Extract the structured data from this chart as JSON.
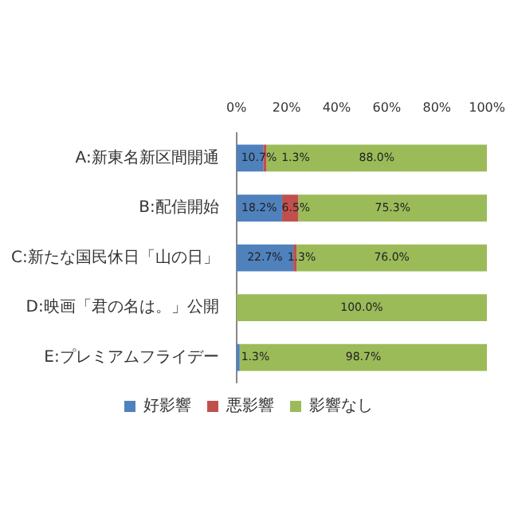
{
  "chart_data": {
    "type": "bar",
    "orientation": "horizontal",
    "stacked": true,
    "legend": "bottom",
    "grid": false,
    "categories": [
      "A:新東名新区間開通",
      "B:配信開始",
      "C:新たな国民休日「山の日」",
      "D:映画「君の名は。」公開",
      "E:プレミアムフライデー"
    ],
    "xlim": [
      0,
      100
    ],
    "xticks": [
      {
        "value": 0,
        "label": "0%"
      },
      {
        "value": 20,
        "label": "20%"
      },
      {
        "value": 40,
        "label": "40%"
      },
      {
        "value": 60,
        "label": "60%"
      },
      {
        "value": 80,
        "label": "80%"
      },
      {
        "value": 100,
        "label": "100%"
      }
    ],
    "series": [
      {
        "name": "好影響",
        "color": "#4f81bd",
        "values": [
          10.7,
          18.2,
          22.7,
          0,
          1.3
        ],
        "value_labels": [
          "10.7%",
          "18.2%",
          "22.7%",
          null,
          "1.3%"
        ]
      },
      {
        "name": "悪影響",
        "color": "#c0504d",
        "values": [
          1.3,
          6.5,
          1.3,
          0,
          0
        ],
        "value_labels": [
          "1.3%",
          "6.5%",
          "1.3%",
          null,
          null
        ]
      },
      {
        "name": "影響なし",
        "color": "#9bbb59",
        "values": [
          88.0,
          75.3,
          76.0,
          100.0,
          98.7
        ],
        "value_labels": [
          "88.0%",
          "75.3%",
          "76.0%",
          "100.0%",
          "98.7%"
        ]
      }
    ]
  }
}
